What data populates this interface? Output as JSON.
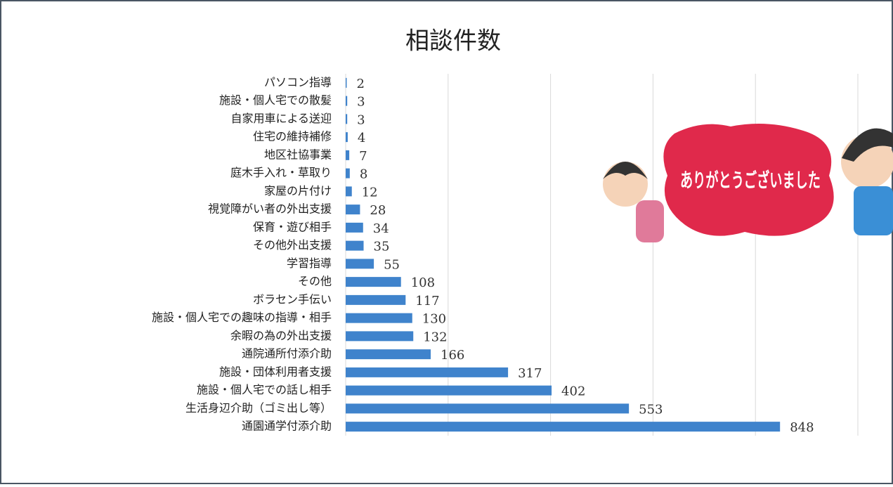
{
  "chart_data": {
    "type": "barh",
    "title": "相談件数",
    "categories": [
      "パソコン指導",
      "施設・個人宅での散髪",
      "自家用車による送迎",
      "住宅の維持補修",
      "地区社協事業",
      "庭木手入れ・草取り",
      "家屋の片付け",
      "視覚障がい者の外出支援",
      "保育・遊び相手",
      "その他外出支援",
      "学習指導",
      "その他",
      "ボラセン手伝い",
      "施設・個人宅での趣味の指導・相手",
      "余暇の為の外出支援",
      "通院通所付添介助",
      "施設・団体利用者支援",
      "施設・個人宅での話し相手",
      "生活身辺介助（ゴミ出し等）",
      "通園通学付添介助"
    ],
    "values": [
      2,
      3,
      3,
      4,
      7,
      8,
      12,
      28,
      34,
      35,
      55,
      108,
      117,
      130,
      132,
      166,
      317,
      402,
      553,
      848
    ],
    "color": "#3f83cc",
    "xlim": [
      0,
      1000
    ],
    "xticks": [
      0,
      200,
      400,
      600,
      800,
      1000
    ],
    "grid": true,
    "annotation": "ありがとうございました"
  }
}
